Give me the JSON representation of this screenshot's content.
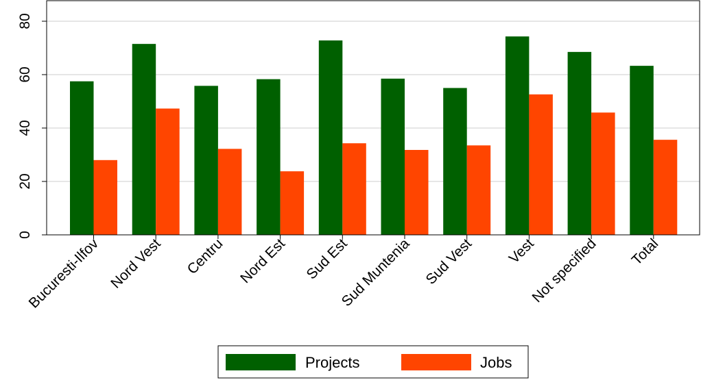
{
  "chart_data": {
    "type": "bar",
    "title": "",
    "xlabel": "",
    "ylabel": "",
    "ylim": [
      0,
      80
    ],
    "yticks": [
      0,
      20,
      40,
      60,
      80
    ],
    "grid": true,
    "legend_position": "bottom-center",
    "categories": [
      "Bucuresti-Ilfov",
      "Nord Vest",
      "Centru",
      "Nord Est",
      "Sud Est",
      "Sud Muntenia",
      "Sud Vest",
      "Vest",
      "Not specified",
      "Total"
    ],
    "series": [
      {
        "name": "Projects",
        "color": "#006000",
        "values": [
          57.5,
          71.5,
          55.8,
          58.3,
          72.8,
          58.5,
          55.0,
          74.3,
          68.5,
          63.3
        ]
      },
      {
        "name": "Jobs",
        "color": "#ff4500",
        "values": [
          28.0,
          47.3,
          32.2,
          23.8,
          34.3,
          31.8,
          33.5,
          52.6,
          45.8,
          35.6
        ]
      }
    ]
  }
}
